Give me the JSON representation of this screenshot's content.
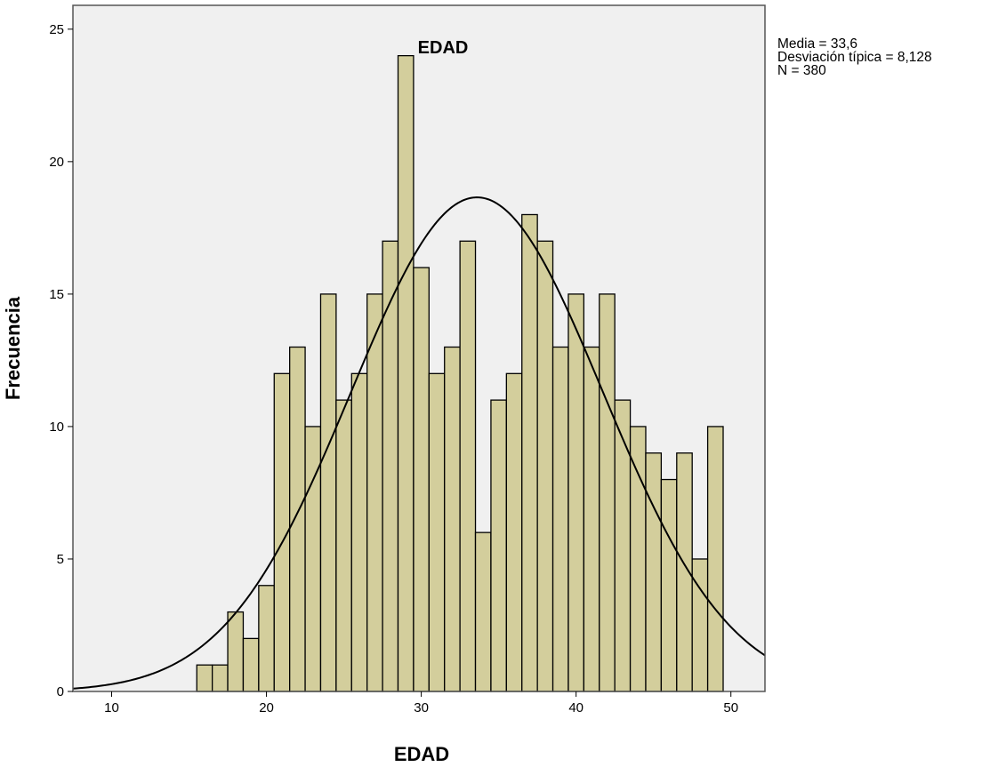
{
  "chart_data": {
    "type": "bar",
    "title": "EDAD",
    "xlabel": "EDAD",
    "ylabel": "Frecuencia",
    "xlim": [
      7.5,
      52.2
    ],
    "ylim": [
      0,
      25.9
    ],
    "xticks": [
      10,
      20,
      30,
      40,
      50
    ],
    "yticks": [
      0,
      5,
      10,
      15,
      20,
      25
    ],
    "bin_width": 1,
    "bin_start": 15.5,
    "values": [
      1,
      1,
      3,
      2,
      4,
      12,
      13,
      10,
      15,
      11,
      12,
      15,
      17,
      24,
      16,
      12,
      13,
      17,
      6,
      11,
      12,
      18,
      17,
      13,
      15,
      13,
      15,
      11,
      10,
      9,
      8,
      9,
      5,
      10
    ],
    "normal_curve": {
      "mean": 33.6,
      "sd": 8.128,
      "n": 380
    },
    "grid": false,
    "colors": {
      "bar_fill": "#d3ce9c",
      "bar_stroke": "#000000",
      "plot_background": "#f0f0f0",
      "curve": "#000000"
    }
  },
  "stats": {
    "mean_line": "Media = 33,6",
    "sd_line": "Desviación típica = 8,128",
    "n_line": "N = 380"
  }
}
